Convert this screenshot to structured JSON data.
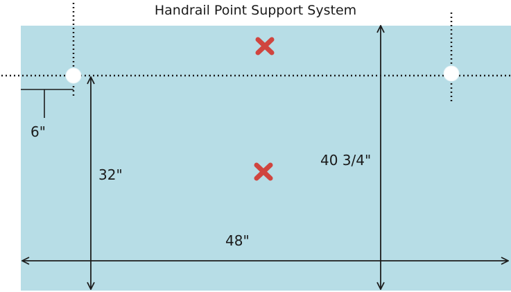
{
  "title": "Handrail Point Support System",
  "colors": {
    "panel": "#b7dde6",
    "line": "#1c1c1c",
    "marker": "#d0453f",
    "support_point": "#ffffff"
  },
  "dimensions": {
    "edge_offset": "6\"",
    "rail_height": "32\"",
    "panel_height": "40 3/4\"",
    "panel_width": "48\""
  },
  "icons": {
    "support_point": "white-circle",
    "marker": "red-x"
  }
}
